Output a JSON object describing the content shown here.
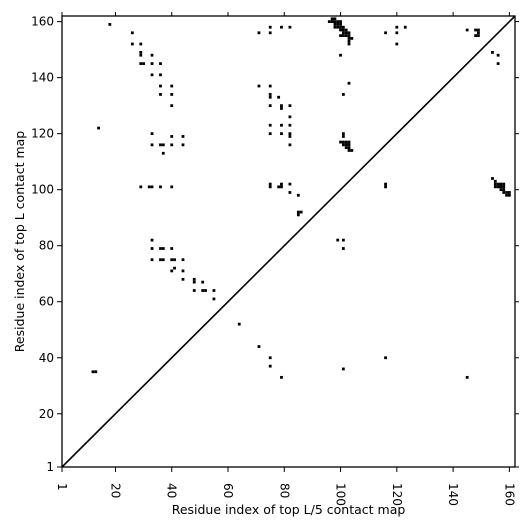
{
  "chart_data": {
    "type": "scatter",
    "title": "",
    "xlabel": "Residue index of top L/5 contact map",
    "ylabel": "Residue index of top L contact map",
    "xlim": [
      1,
      162
    ],
    "ylim": [
      1,
      162
    ],
    "x_ticks": [
      1,
      20,
      40,
      60,
      80,
      100,
      120,
      140,
      160
    ],
    "y_ticks": [
      1,
      20,
      40,
      60,
      80,
      100,
      120,
      140,
      160
    ],
    "x_tick_labels": [
      "1",
      "20",
      "40",
      "60",
      "80",
      "100",
      "120",
      "140",
      "160"
    ],
    "y_tick_labels": [
      "1",
      "20",
      "40",
      "60",
      "80",
      "100",
      "120",
      "140",
      "160"
    ],
    "grid": false,
    "diagonal": [
      [
        1,
        1
      ],
      [
        162,
        162
      ]
    ],
    "marker_color": "#000000",
    "series": [
      {
        "values": [
          [
            18,
            159
          ],
          [
            26,
            156
          ],
          [
            26,
            152
          ],
          [
            29,
            152
          ],
          [
            29,
            149
          ],
          [
            29,
            148
          ],
          [
            29,
            145
          ],
          [
            30,
            145
          ],
          [
            33,
            148
          ],
          [
            33,
            145
          ],
          [
            36,
            145
          ],
          [
            33,
            141
          ],
          [
            36,
            141
          ],
          [
            36,
            137
          ],
          [
            36,
            134
          ],
          [
            40,
            137
          ],
          [
            40,
            134
          ],
          [
            40,
            130
          ],
          [
            14,
            122
          ],
          [
            33,
            120
          ],
          [
            33,
            116
          ],
          [
            36,
            116
          ],
          [
            37,
            116
          ],
          [
            37,
            113
          ],
          [
            40,
            119
          ],
          [
            40,
            116
          ],
          [
            44,
            119
          ],
          [
            44,
            116
          ],
          [
            29,
            101
          ],
          [
            32,
            101
          ],
          [
            33,
            101
          ],
          [
            36,
            101
          ],
          [
            40,
            101
          ],
          [
            33,
            82
          ],
          [
            33,
            79
          ],
          [
            36,
            79
          ],
          [
            37,
            79
          ],
          [
            40,
            79
          ],
          [
            33,
            75
          ],
          [
            36,
            75
          ],
          [
            37,
            75
          ],
          [
            40,
            75
          ],
          [
            41,
            75
          ],
          [
            44,
            75
          ],
          [
            40,
            71
          ],
          [
            41,
            72
          ],
          [
            44,
            71
          ],
          [
            44,
            68
          ],
          [
            48,
            68
          ],
          [
            48,
            67
          ],
          [
            48,
            64
          ],
          [
            51,
            67
          ],
          [
            51,
            64
          ],
          [
            52,
            64
          ],
          [
            55,
            64
          ],
          [
            55,
            61
          ],
          [
            64,
            52
          ],
          [
            71,
            44
          ],
          [
            75,
            40
          ],
          [
            75,
            37
          ],
          [
            12,
            35
          ],
          [
            13,
            35
          ],
          [
            79,
            33
          ],
          [
            71,
            156
          ],
          [
            75,
            158
          ],
          [
            75,
            156
          ],
          [
            79,
            158
          ],
          [
            82,
            158
          ],
          [
            71,
            137
          ],
          [
            75,
            137
          ],
          [
            75,
            134
          ],
          [
            75,
            133
          ],
          [
            75,
            130
          ],
          [
            78,
            133
          ],
          [
            79,
            130
          ],
          [
            79,
            129
          ],
          [
            82,
            130
          ],
          [
            75,
            123
          ],
          [
            75,
            120
          ],
          [
            79,
            123
          ],
          [
            79,
            120
          ],
          [
            82,
            126
          ],
          [
            82,
            123
          ],
          [
            82,
            120
          ],
          [
            82,
            119
          ],
          [
            82,
            116
          ],
          [
            75,
            102
          ],
          [
            75,
            101
          ],
          [
            78,
            101
          ],
          [
            79,
            102
          ],
          [
            79,
            101
          ],
          [
            82,
            102
          ],
          [
            82,
            99
          ],
          [
            85,
            98
          ],
          [
            85,
            92
          ],
          [
            86,
            92
          ],
          [
            85,
            91
          ],
          [
            96,
            160
          ],
          [
            97,
            161
          ],
          [
            97,
            160
          ],
          [
            98,
            161
          ],
          [
            98,
            160
          ],
          [
            98,
            159
          ],
          [
            99,
            160
          ],
          [
            99,
            159
          ],
          [
            99,
            158
          ],
          [
            100,
            160
          ],
          [
            100,
            159
          ],
          [
            100,
            158
          ],
          [
            100,
            157
          ],
          [
            101,
            158
          ],
          [
            101,
            157
          ],
          [
            101,
            156
          ],
          [
            102,
            157
          ],
          [
            102,
            156
          ],
          [
            102,
            155
          ],
          [
            103,
            156
          ],
          [
            103,
            155
          ],
          [
            103,
            154
          ],
          [
            103,
            153
          ],
          [
            103,
            152
          ],
          [
            104,
            154
          ],
          [
            100,
            155
          ],
          [
            101,
            155
          ],
          [
            98,
            158
          ],
          [
            100,
            148
          ],
          [
            101,
            134
          ],
          [
            103,
            138
          ],
          [
            100,
            117
          ],
          [
            101,
            117
          ],
          [
            101,
            116
          ],
          [
            102,
            117
          ],
          [
            102,
            116
          ],
          [
            102,
            115
          ],
          [
            103,
            117
          ],
          [
            103,
            116
          ],
          [
            103,
            115
          ],
          [
            103,
            114
          ],
          [
            104,
            114
          ],
          [
            101,
            119
          ],
          [
            101,
            120
          ],
          [
            99,
            82
          ],
          [
            101,
            82
          ],
          [
            101,
            79
          ],
          [
            101,
            36
          ],
          [
            116,
            156
          ],
          [
            120,
            158
          ],
          [
            120,
            156
          ],
          [
            120,
            152
          ],
          [
            123,
            158
          ],
          [
            116,
            102
          ],
          [
            116,
            101
          ],
          [
            116,
            40
          ],
          [
            145,
            157
          ],
          [
            148,
            157
          ],
          [
            149,
            157
          ],
          [
            149,
            156
          ],
          [
            149,
            155
          ],
          [
            148,
            155
          ],
          [
            154,
            149
          ],
          [
            156,
            148
          ],
          [
            156,
            145
          ],
          [
            154,
            104
          ],
          [
            155,
            103
          ],
          [
            155,
            102
          ],
          [
            155,
            101
          ],
          [
            156,
            102
          ],
          [
            156,
            101
          ],
          [
            157,
            102
          ],
          [
            157,
            101
          ],
          [
            157,
            100
          ],
          [
            158,
            102
          ],
          [
            158,
            101
          ],
          [
            158,
            100
          ],
          [
            158,
            99
          ],
          [
            159,
            99
          ],
          [
            159,
            98
          ],
          [
            160,
            98
          ],
          [
            160,
            99
          ],
          [
            145,
            33
          ]
        ]
      }
    ]
  }
}
